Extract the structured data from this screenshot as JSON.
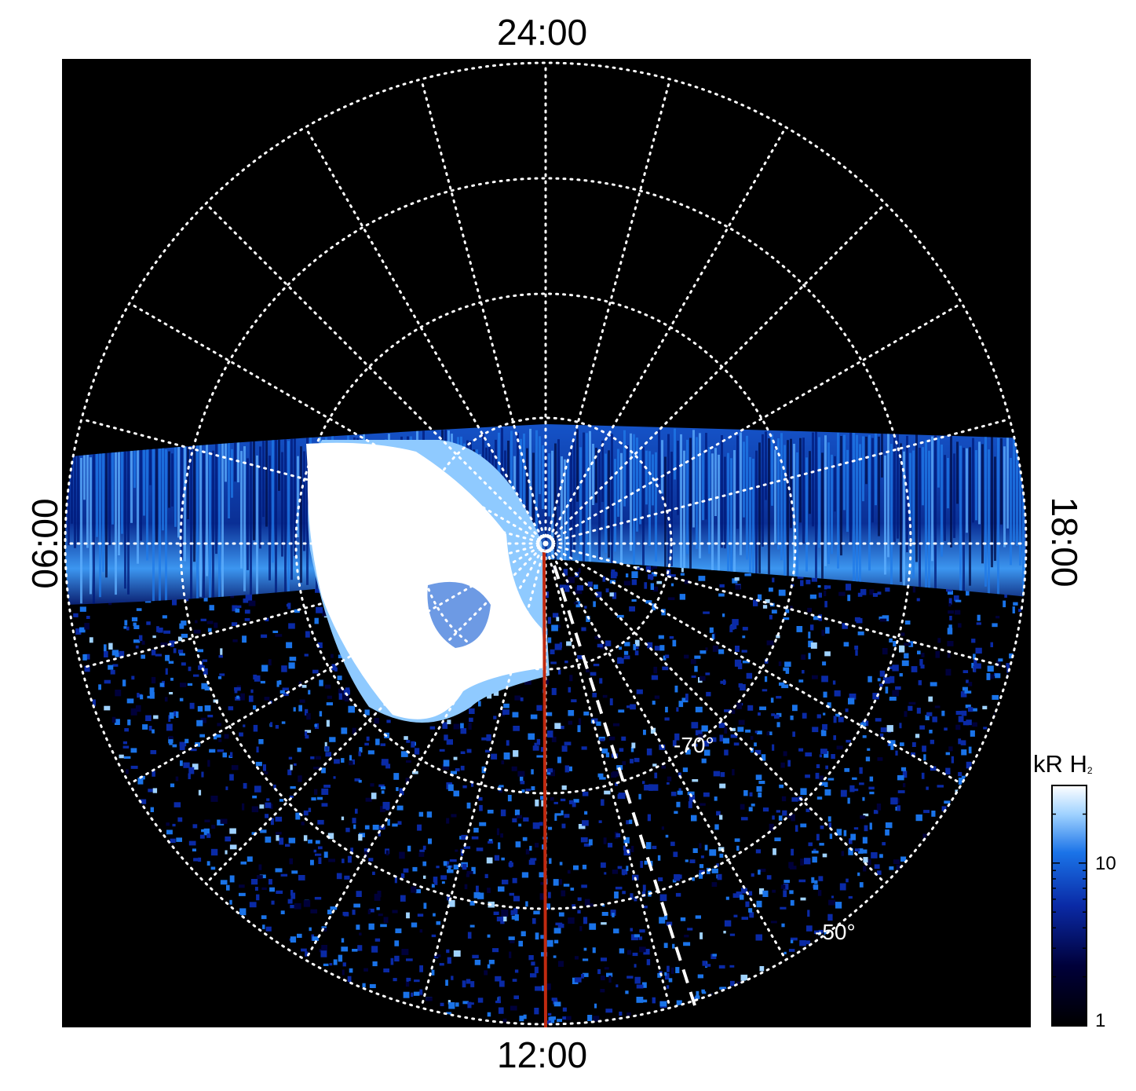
{
  "chart_data": {
    "type": "heatmap",
    "projection": "polar (south pole)",
    "local_time_labels": {
      "top": "24:00",
      "bottom": "12:00",
      "left": "06:00",
      "right": "18:00"
    },
    "latitude_labels": [
      "-70°",
      "-50°"
    ],
    "colorbar": {
      "label": "kR H",
      "label_subscript": "2",
      "scale": "log",
      "range": [
        1,
        30
      ],
      "ticks": [
        "10",
        "1"
      ],
      "colors": [
        "#000000",
        "#00003a",
        "#0a2aa6",
        "#1a73e8",
        "#9fd2ff",
        "#ffffff"
      ]
    },
    "grid": true,
    "overlays": [
      "red line from pole toward 12:00",
      "white dashed line toward ~12:40 LT"
    ]
  }
}
